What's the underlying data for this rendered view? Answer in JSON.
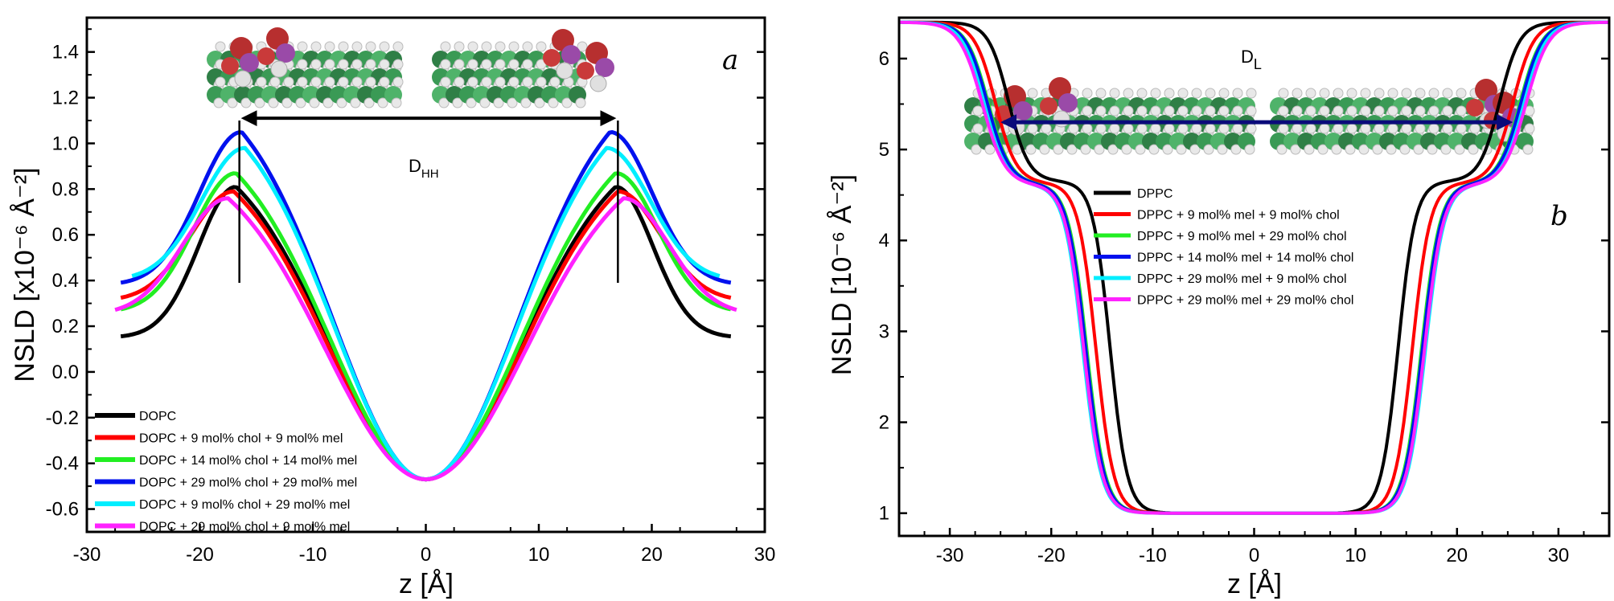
{
  "chart_data": [
    {
      "type": "line",
      "panel_label": "a",
      "xlabel": "z  [Å]",
      "ylabel": "NSLD [x10⁻⁶ Å⁻²]",
      "xlim": [
        -30,
        30
      ],
      "ylim": [
        -0.7,
        1.55
      ],
      "x_ticks": [
        "-30",
        "-20",
        "-10",
        "0",
        "10",
        "20",
        "30"
      ],
      "y_ticks": [
        "-0.6",
        "-0.4",
        "-0.2",
        "0.0",
        "0.2",
        "0.4",
        "0.6",
        "0.8",
        "1.0",
        "1.2",
        "1.4"
      ],
      "grid": false,
      "legend_position": "bottom-left",
      "annotation": "D_HH",
      "annotation_main": "D",
      "annotation_sub": "HH",
      "marker_lines_x": [
        -16.5,
        17
      ],
      "colors": {
        "DOPC": "#000000",
        "red": "#ff0000",
        "green": "#22ee22",
        "blue": "#0011ee",
        "cyan": "#00eeff",
        "magenta": "#ff22ff"
      },
      "series": [
        {
          "name": "DOPC",
          "color": "#000000",
          "params": {
            "xmax": 27,
            "peak": 16.8,
            "hp": 0.81,
            "h0": -0.47,
            "hend": 0.15,
            "wr": 4.9
          }
        },
        {
          "name": "DOPC + 9 mol% chol + 9 mol% mel",
          "color": "#ff0000",
          "params": {
            "xmax": 27,
            "peak": 17.0,
            "hp": 0.79,
            "h0": -0.47,
            "hend": 0.31,
            "wr": 5.6
          }
        },
        {
          "name": "DOPC + 14 mol% chol + 14 mol% mel",
          "color": "#22ee22",
          "params": {
            "xmax": 27,
            "peak": 16.8,
            "hp": 0.87,
            "h0": -0.47,
            "hend": 0.26,
            "wr": 5.5
          }
        },
        {
          "name": "DOPC + 29 mol% chol + 29 mol% mel",
          "color": "#0011ee",
          "params": {
            "xmax": 27,
            "peak": 16.3,
            "hp": 1.05,
            "h0": -0.47,
            "hend": 0.38,
            "wr": 5.5
          }
        },
        {
          "name": "DOPC + 9 mol% chol + 29 mol% mel",
          "color": "#00eeff",
          "params": {
            "xmax": 26,
            "peak": 16.0,
            "hp": 0.98,
            "h0": -0.47,
            "hend": 0.4,
            "wr": 5.7
          }
        },
        {
          "name": "DOPC + 29 mol% chol + 9 mol% mel",
          "color": "#ff22ff",
          "params": {
            "xmax": 27.5,
            "peak": 17.5,
            "hp": 0.76,
            "h0": -0.47,
            "hend": 0.25,
            "wr": 5.9
          }
        }
      ]
    },
    {
      "type": "line",
      "panel_label": "b",
      "xlabel": "z  [Å]",
      "ylabel": "NSLD [10⁻⁶ Å⁻²]",
      "xlim": [
        -35,
        35
      ],
      "ylim": [
        0.75,
        6.45
      ],
      "x_ticks": [
        "-30",
        "-20",
        "-10",
        "0",
        "10",
        "20",
        "30"
      ],
      "y_ticks": [
        "1",
        "2",
        "3",
        "4",
        "5",
        "6"
      ],
      "grid": false,
      "legend_position": "top-center",
      "annotation": "D_L",
      "annotation_main": "D",
      "annotation_sub": "L",
      "arrow_x": [
        -25,
        25.5
      ],
      "arrow_y": 5.3,
      "colors": {
        "DPPC": "#000000",
        "red": "#ff0000",
        "green": "#22ee22",
        "blue": "#0011ee",
        "cyan": "#00eeff",
        "magenta": "#ff22ff"
      },
      "series": [
        {
          "name": "DPPC",
          "color": "#000000",
          "params": {
            "zc": 24.2,
            "wc": 2.2,
            "zt": 14.2,
            "wt": 1.2,
            "s": 0.45
          }
        },
        {
          "name": "DPPC + 9 mol% mel + 9 mol% chol",
          "color": "#ff0000",
          "params": {
            "zc": 25.5,
            "wc": 2.3,
            "zt": 15.6,
            "wt": 1.25,
            "s": 0.43
          }
        },
        {
          "name": "DPPC + 9 mol% mel + 29 mol% chol",
          "color": "#22ee22",
          "params": {
            "zc": 26.2,
            "wc": 2.4,
            "zt": 16.5,
            "wt": 1.3,
            "s": 0.42
          }
        },
        {
          "name": "DPPC + 14 mol% mel + 14 mol% chol",
          "color": "#0011ee",
          "params": {
            "zc": 26.3,
            "wc": 2.4,
            "zt": 16.6,
            "wt": 1.3,
            "s": 0.42
          }
        },
        {
          "name": "DPPC + 29 mol% mel + 9 mol% chol",
          "color": "#00eeff",
          "params": {
            "zc": 26.6,
            "wc": 2.4,
            "zt": 16.9,
            "wt": 1.3,
            "s": 0.41
          }
        },
        {
          "name": "DPPC + 29 mol% mel + 29 mol% chol",
          "color": "#ff22ff",
          "params": {
            "zc": 26.8,
            "wc": 2.5,
            "zt": 16.8,
            "wt": 1.3,
            "s": 0.41
          }
        }
      ]
    }
  ]
}
